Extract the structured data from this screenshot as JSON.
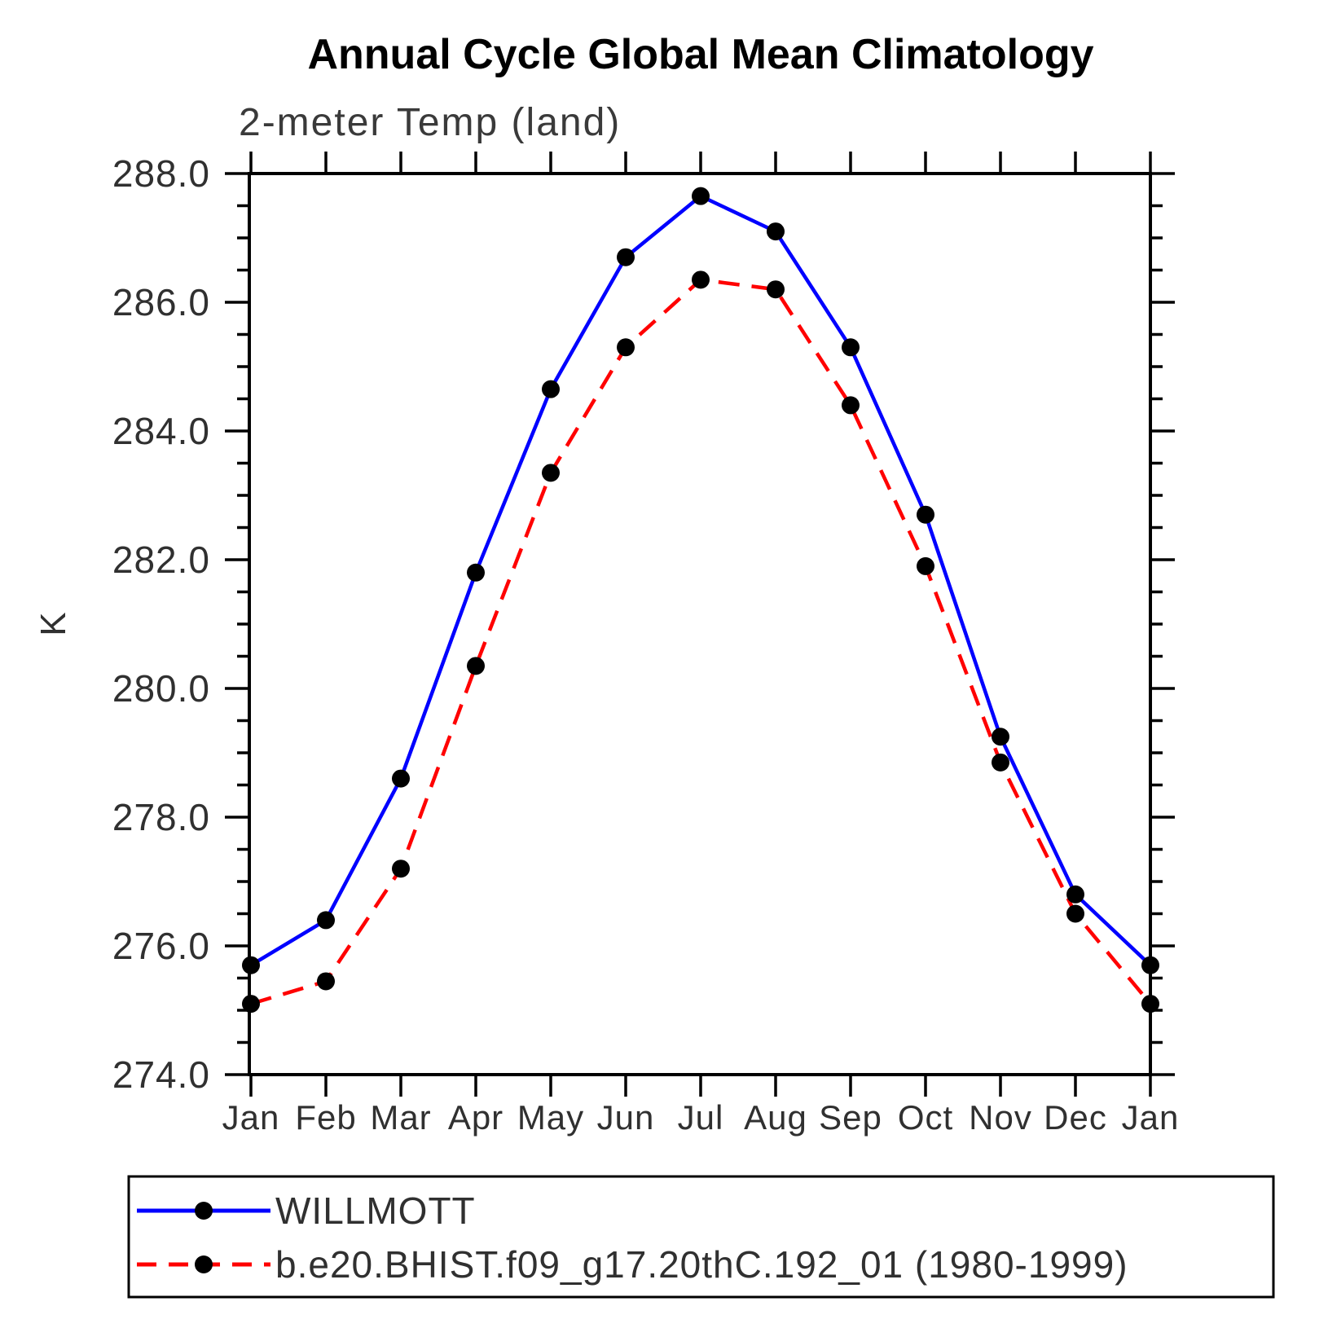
{
  "header": {
    "title": "Annual Cycle Global Mean Climatology",
    "subtitle": "2-meter Temp (land)"
  },
  "axes": {
    "y_label": "K",
    "y_tick_labels": [
      "288.0",
      "286.0",
      "284.0",
      "282.0",
      "280.0",
      "278.0",
      "276.0",
      "274.0"
    ],
    "x_tick_labels": [
      "Jan",
      "Feb",
      "Mar",
      "Apr",
      "May",
      "Jun",
      "Jul",
      "Aug",
      "Sep",
      "Oct",
      "Nov",
      "Dec",
      "Jan"
    ]
  },
  "legend": {
    "items": [
      {
        "label": "WILLMOTT",
        "color": "#0000ff",
        "line_style": "solid",
        "marker": "black-circle"
      },
      {
        "label": "b.e20.BHIST.f09_g17.20thC.192_01 (1980-1999)",
        "color": "#ff0000",
        "line_style": "dashed",
        "marker": "black-circle"
      }
    ]
  },
  "colors": {
    "series1": "#0000ff",
    "series2": "#ff0000",
    "marker": "#000000",
    "frame": "#000000"
  },
  "chart_data": {
    "type": "line",
    "title": "Annual Cycle Global Mean Climatology",
    "subtitle": "2-meter Temp (land)",
    "xlabel": "",
    "ylabel": "K",
    "ylim": [
      274.0,
      288.0
    ],
    "y_major_step": 2.0,
    "y_minor_step": 0.5,
    "grid": false,
    "legend_position": "bottom",
    "categories": [
      "Jan",
      "Feb",
      "Mar",
      "Apr",
      "May",
      "Jun",
      "Jul",
      "Aug",
      "Sep",
      "Oct",
      "Nov",
      "Dec",
      "Jan"
    ],
    "series": [
      {
        "name": "WILLMOTT",
        "color": "#0000ff",
        "line_style": "solid",
        "marker": "black-circle",
        "values": [
          275.7,
          276.4,
          278.6,
          281.8,
          284.65,
          286.7,
          287.65,
          287.1,
          285.3,
          282.7,
          279.25,
          276.8,
          275.7
        ]
      },
      {
        "name": "b.e20.BHIST.f09_g17.20thC.192_01 (1980-1999)",
        "color": "#ff0000",
        "line_style": "dashed",
        "marker": "black-circle",
        "values": [
          275.1,
          275.45,
          277.2,
          280.35,
          283.35,
          285.3,
          286.35,
          286.2,
          284.4,
          281.9,
          278.85,
          276.5,
          275.1
        ]
      }
    ]
  }
}
